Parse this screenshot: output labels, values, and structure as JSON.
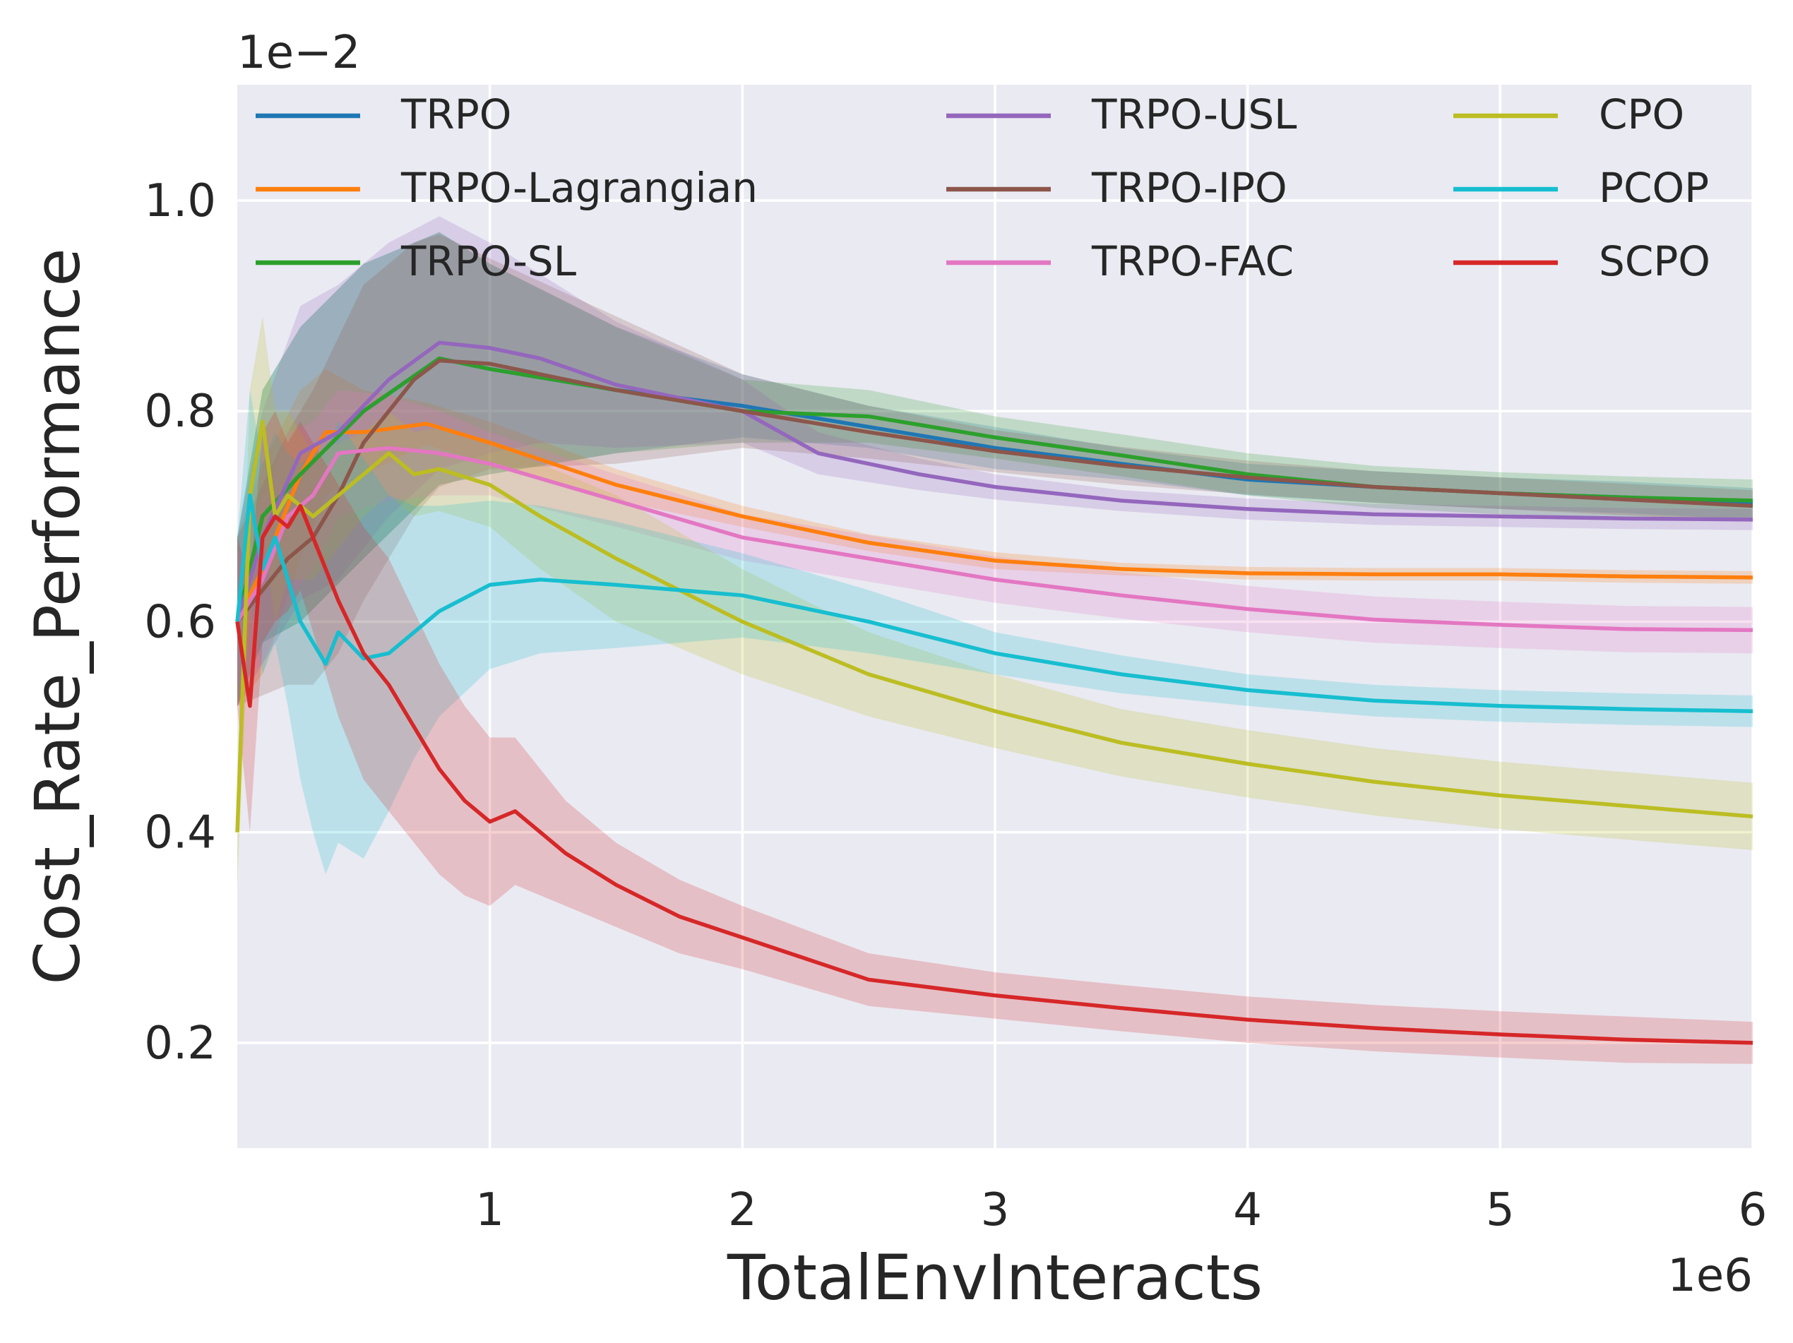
{
  "chart_data": {
    "type": "line",
    "title": "",
    "xlabel": "TotalEnvInteracts",
    "ylabel": "Cost_Rate_Performance",
    "x_offset_label": "1e6",
    "y_offset_label": "1e−2",
    "xlim": [
      0,
      6
    ],
    "ylim": [
      0.1,
      1.11
    ],
    "xticks": [
      1,
      2,
      3,
      4,
      5,
      6
    ],
    "xtick_labels": [
      "1",
      "2",
      "3",
      "4",
      "5",
      "6"
    ],
    "yticks": [
      0.2,
      0.4,
      0.6,
      0.8,
      1.0
    ],
    "ytick_labels": [
      "0.2",
      "0.4",
      "0.6",
      "0.8",
      "1.0"
    ],
    "grid": true,
    "legend_placement": "top",
    "series": [
      {
        "name": "TRPO",
        "color": "#1f77b4",
        "x": [
          0.0,
          0.1,
          0.25,
          0.5,
          0.8,
          1.0,
          1.5,
          2.0,
          2.5,
          3.0,
          3.5,
          4.0,
          4.5,
          5.0,
          5.5,
          6.0
        ],
        "y": [
          0.6,
          0.7,
          0.74,
          0.8,
          0.85,
          0.84,
          0.82,
          0.805,
          0.785,
          0.765,
          0.75,
          0.735,
          0.728,
          0.722,
          0.718,
          0.712
        ],
        "band": [
          0.08,
          0.12,
          0.14,
          0.14,
          0.12,
          0.1,
          0.06,
          0.03,
          0.02,
          0.02,
          0.015,
          0.015,
          0.015,
          0.015,
          0.015,
          0.015
        ]
      },
      {
        "name": "TRPO-Lagrangian",
        "color": "#ff7f0e",
        "x": [
          0.0,
          0.1,
          0.25,
          0.35,
          0.5,
          0.75,
          1.0,
          1.5,
          2.0,
          2.5,
          3.0,
          3.5,
          4.0,
          4.5,
          5.0,
          5.5,
          6.0
        ],
        "y": [
          0.6,
          0.65,
          0.74,
          0.78,
          0.78,
          0.788,
          0.77,
          0.73,
          0.7,
          0.675,
          0.658,
          0.65,
          0.646,
          0.645,
          0.645,
          0.643,
          0.642
        ],
        "band": [
          0.08,
          0.1,
          0.08,
          0.06,
          0.04,
          0.02,
          0.02,
          0.015,
          0.01,
          0.008,
          0.008,
          0.006,
          0.006,
          0.006,
          0.006,
          0.006,
          0.006
        ]
      },
      {
        "name": "TRPO-SL",
        "color": "#2ca02c",
        "x": [
          0.0,
          0.1,
          0.25,
          0.5,
          0.8,
          1.0,
          1.5,
          2.0,
          2.5,
          3.0,
          3.5,
          4.0,
          4.5,
          5.0,
          5.5,
          6.0
        ],
        "y": [
          0.6,
          0.7,
          0.74,
          0.8,
          0.85,
          0.84,
          0.82,
          0.8,
          0.795,
          0.775,
          0.758,
          0.74,
          0.728,
          0.722,
          0.718,
          0.715
        ],
        "band": [
          0.08,
          0.12,
          0.14,
          0.14,
          0.12,
          0.1,
          0.06,
          0.03,
          0.025,
          0.02,
          0.02,
          0.02,
          0.02,
          0.02,
          0.02,
          0.02
        ]
      },
      {
        "name": "TRPO-USL",
        "color": "#9467bd",
        "x": [
          0.0,
          0.1,
          0.25,
          0.4,
          0.6,
          0.8,
          1.0,
          1.2,
          1.5,
          2.0,
          2.3,
          2.7,
          3.0,
          3.5,
          4.0,
          4.5,
          5.0,
          5.5,
          6.0
        ],
        "y": [
          0.6,
          0.68,
          0.76,
          0.78,
          0.83,
          0.865,
          0.86,
          0.85,
          0.825,
          0.8,
          0.76,
          0.74,
          0.728,
          0.715,
          0.707,
          0.702,
          0.7,
          0.698,
          0.697
        ],
        "band": [
          0.08,
          0.12,
          0.14,
          0.14,
          0.13,
          0.12,
          0.1,
          0.08,
          0.06,
          0.03,
          0.02,
          0.015,
          0.012,
          0.01,
          0.01,
          0.01,
          0.01,
          0.01,
          0.01
        ]
      },
      {
        "name": "TRPO-IPO",
        "color": "#8c564b",
        "x": [
          0.0,
          0.1,
          0.2,
          0.3,
          0.4,
          0.5,
          0.6,
          0.7,
          0.8,
          1.0,
          1.5,
          2.0,
          2.5,
          3.0,
          3.5,
          4.0,
          4.5,
          5.0,
          5.5,
          6.0
        ],
        "y": [
          0.6,
          0.63,
          0.66,
          0.68,
          0.72,
          0.77,
          0.8,
          0.83,
          0.848,
          0.845,
          0.82,
          0.8,
          0.78,
          0.762,
          0.748,
          0.737,
          0.728,
          0.722,
          0.716,
          0.71
        ],
        "band": [
          0.08,
          0.1,
          0.12,
          0.14,
          0.15,
          0.15,
          0.14,
          0.13,
          0.12,
          0.1,
          0.07,
          0.035,
          0.025,
          0.02,
          0.018,
          0.016,
          0.015,
          0.015,
          0.015,
          0.015
        ]
      },
      {
        "name": "TRPO-FAC",
        "color": "#e377c2",
        "x": [
          0.0,
          0.1,
          0.2,
          0.3,
          0.4,
          0.6,
          0.8,
          1.0,
          1.5,
          2.0,
          2.5,
          3.0,
          3.5,
          4.0,
          4.5,
          5.0,
          5.5,
          6.0
        ],
        "y": [
          0.6,
          0.64,
          0.7,
          0.72,
          0.76,
          0.765,
          0.76,
          0.75,
          0.715,
          0.68,
          0.66,
          0.64,
          0.625,
          0.612,
          0.602,
          0.597,
          0.593,
          0.592
        ],
        "band": [
          0.06,
          0.08,
          0.08,
          0.07,
          0.06,
          0.05,
          0.04,
          0.03,
          0.025,
          0.022,
          0.022,
          0.022,
          0.022,
          0.022,
          0.022,
          0.022,
          0.022,
          0.022
        ]
      },
      {
        "name": "CPO",
        "color": "#bcbd22",
        "x": [
          0.0,
          0.05,
          0.1,
          0.15,
          0.2,
          0.3,
          0.4,
          0.5,
          0.6,
          0.7,
          0.8,
          1.0,
          1.2,
          1.5,
          2.0,
          2.5,
          3.0,
          3.5,
          4.0,
          4.5,
          5.0,
          5.5,
          6.0
        ],
        "y": [
          0.4,
          0.72,
          0.79,
          0.7,
          0.72,
          0.7,
          0.72,
          0.74,
          0.76,
          0.74,
          0.745,
          0.73,
          0.7,
          0.66,
          0.6,
          0.55,
          0.515,
          0.485,
          0.465,
          0.448,
          0.435,
          0.425,
          0.415
        ],
        "band": [
          0.05,
          0.1,
          0.1,
          0.1,
          0.08,
          0.06,
          0.05,
          0.04,
          0.04,
          0.04,
          0.04,
          0.04,
          0.05,
          0.06,
          0.05,
          0.04,
          0.035,
          0.032,
          0.032,
          0.032,
          0.032,
          0.032,
          0.032
        ]
      },
      {
        "name": "PCOP",
        "color": "#17becf",
        "x": [
          0.0,
          0.05,
          0.1,
          0.15,
          0.2,
          0.25,
          0.3,
          0.35,
          0.4,
          0.5,
          0.6,
          0.7,
          0.8,
          1.0,
          1.2,
          1.5,
          2.0,
          2.5,
          3.0,
          3.5,
          4.0,
          4.5,
          5.0,
          5.5,
          6.0
        ],
        "y": [
          0.6,
          0.72,
          0.65,
          0.68,
          0.64,
          0.6,
          0.58,
          0.56,
          0.59,
          0.565,
          0.57,
          0.59,
          0.61,
          0.635,
          0.64,
          0.635,
          0.625,
          0.6,
          0.57,
          0.55,
          0.535,
          0.525,
          0.52,
          0.517,
          0.515
        ],
        "band": [
          0.08,
          0.1,
          0.1,
          0.1,
          0.12,
          0.15,
          0.18,
          0.2,
          0.2,
          0.19,
          0.15,
          0.12,
          0.1,
          0.08,
          0.07,
          0.06,
          0.04,
          0.03,
          0.02,
          0.018,
          0.015,
          0.015,
          0.015,
          0.015,
          0.015
        ]
      },
      {
        "name": "SCPO",
        "color": "#d62728",
        "x": [
          0.0,
          0.05,
          0.1,
          0.15,
          0.2,
          0.25,
          0.3,
          0.35,
          0.4,
          0.5,
          0.6,
          0.7,
          0.8,
          0.9,
          1.0,
          1.1,
          1.2,
          1.3,
          1.5,
          1.75,
          2.0,
          2.5,
          3.0,
          3.5,
          4.0,
          4.5,
          5.0,
          5.5,
          6.0
        ],
        "y": [
          0.6,
          0.52,
          0.68,
          0.7,
          0.69,
          0.71,
          0.68,
          0.65,
          0.62,
          0.57,
          0.54,
          0.5,
          0.46,
          0.43,
          0.41,
          0.42,
          0.4,
          0.38,
          0.35,
          0.32,
          0.3,
          0.26,
          0.245,
          0.233,
          0.222,
          0.214,
          0.208,
          0.203,
          0.2
        ],
        "band": [
          0.08,
          0.12,
          0.1,
          0.1,
          0.08,
          0.08,
          0.09,
          0.1,
          0.11,
          0.12,
          0.12,
          0.11,
          0.1,
          0.09,
          0.08,
          0.07,
          0.06,
          0.05,
          0.04,
          0.035,
          0.03,
          0.025,
          0.022,
          0.022,
          0.022,
          0.022,
          0.022,
          0.022,
          0.02
        ]
      }
    ]
  }
}
